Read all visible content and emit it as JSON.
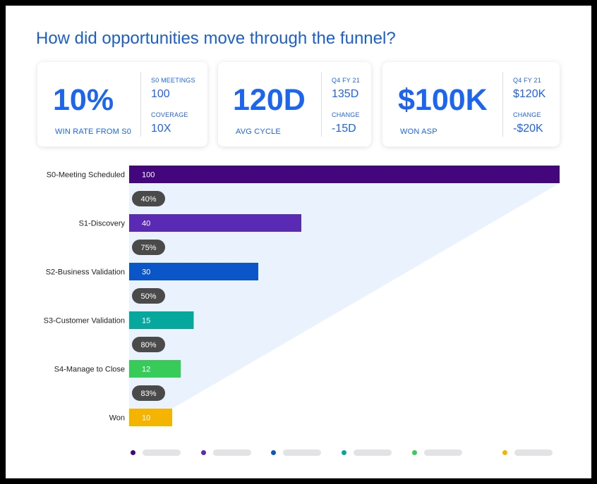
{
  "title": "How did opportunities move through the funnel?",
  "kpis": [
    {
      "value": "10%",
      "label": "WIN RATE FROM S0",
      "side": [
        {
          "label": "S0 MEETINGS",
          "value": "100"
        },
        {
          "label": "COVERAGE",
          "value": "10X"
        }
      ]
    },
    {
      "value": "120D",
      "label": "AVG CYCLE",
      "side": [
        {
          "label": "Q4 FY 21",
          "value": "135D"
        },
        {
          "label": "CHANGE",
          "value": "-15D"
        }
      ]
    },
    {
      "value": "$100K",
      "label": "WON ASP",
      "side": [
        {
          "label": "Q4 FY 21",
          "value": "$120K"
        },
        {
          "label": "CHANGE",
          "value": "-$20K"
        }
      ]
    }
  ],
  "colors": {
    "title": "#1a5fd1",
    "kpi": "#1c64f2",
    "funnel_shade": "#eaf3fd",
    "pill_bg": "#4a4a4a",
    "legend_placeholder": "#e3e3e5"
  },
  "chart_data": {
    "type": "bar",
    "orientation": "horizontal",
    "categories": [
      "S0-Meeting Scheduled",
      "S1-Discovery",
      "S2-Business Validation",
      "S3-Customer Validation",
      "S4-Manage to Close",
      "Won"
    ],
    "values": [
      100,
      40,
      30,
      15,
      12,
      10
    ],
    "bar_colors": [
      "#43067c",
      "#5b2ab5",
      "#0a56c8",
      "#06a89e",
      "#37cc5a",
      "#f4b400"
    ],
    "conversion_rates": [
      "40%",
      "75%",
      "50%",
      "80%",
      "83%"
    ],
    "xlim": [
      0,
      100
    ],
    "grid": false,
    "legend": {
      "placement": "bottom",
      "entries": 6
    }
  }
}
